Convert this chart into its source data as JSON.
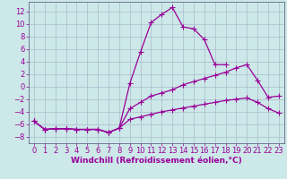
{
  "line1_x": [
    0,
    1,
    2,
    3,
    4,
    5,
    6,
    7,
    8,
    9,
    10,
    11,
    12,
    13,
    14,
    15,
    16,
    17,
    18,
    19,
    20,
    21,
    22,
    23
  ],
  "line1_y": [
    -5.5,
    -6.8,
    -6.7,
    -6.7,
    -6.8,
    -6.8,
    -6.8,
    -7.3,
    -6.6,
    0.5,
    5.5,
    10.2,
    11.5,
    12.6,
    9.5,
    9.2,
    7.5,
    3.5,
    3.5,
    null,
    null,
    null,
    null,
    null
  ],
  "line2_x": [
    0,
    1,
    2,
    3,
    4,
    5,
    6,
    7,
    8,
    9,
    10,
    11,
    12,
    13,
    14,
    15,
    16,
    17,
    18,
    19,
    20,
    21,
    22,
    23
  ],
  "line2_y": [
    -5.5,
    -6.8,
    -6.7,
    -6.7,
    -6.8,
    -6.8,
    -6.8,
    -7.3,
    -6.6,
    -3.5,
    -2.5,
    -1.5,
    -1.0,
    -0.5,
    0.3,
    0.8,
    1.3,
    1.8,
    2.3,
    3.0,
    3.5,
    1.0,
    -1.7,
    -1.5
  ],
  "line3_x": [
    0,
    1,
    2,
    3,
    4,
    5,
    6,
    7,
    8,
    9,
    10,
    11,
    12,
    13,
    14,
    15,
    16,
    17,
    18,
    19,
    20,
    21,
    22,
    23
  ],
  "line3_y": [
    -5.5,
    -6.8,
    -6.7,
    -6.7,
    -6.8,
    -6.8,
    -6.8,
    -7.3,
    -6.6,
    -5.2,
    -4.8,
    -4.4,
    -4.0,
    -3.7,
    -3.4,
    -3.1,
    -2.8,
    -2.5,
    -2.2,
    -2.0,
    -1.8,
    -2.5,
    -3.5,
    -4.2
  ],
  "line_color": "#990099",
  "bg_color": "#cce8e8",
  "grid_color": "#aabbcc",
  "xlabel": "Windchill (Refroidissement éolien,°C)",
  "xlim": [
    -0.5,
    23.5
  ],
  "ylim": [
    -9,
    13.5
  ],
  "yticks": [
    -8,
    -6,
    -4,
    -2,
    0,
    2,
    4,
    6,
    8,
    10,
    12
  ],
  "xticks": [
    0,
    1,
    2,
    3,
    4,
    5,
    6,
    7,
    8,
    9,
    10,
    11,
    12,
    13,
    14,
    15,
    16,
    17,
    18,
    19,
    20,
    21,
    22,
    23
  ],
  "marker": "+",
  "markersize": 4,
  "linewidth": 0.9,
  "xlabel_fontsize": 6.5,
  "tick_fontsize": 6
}
